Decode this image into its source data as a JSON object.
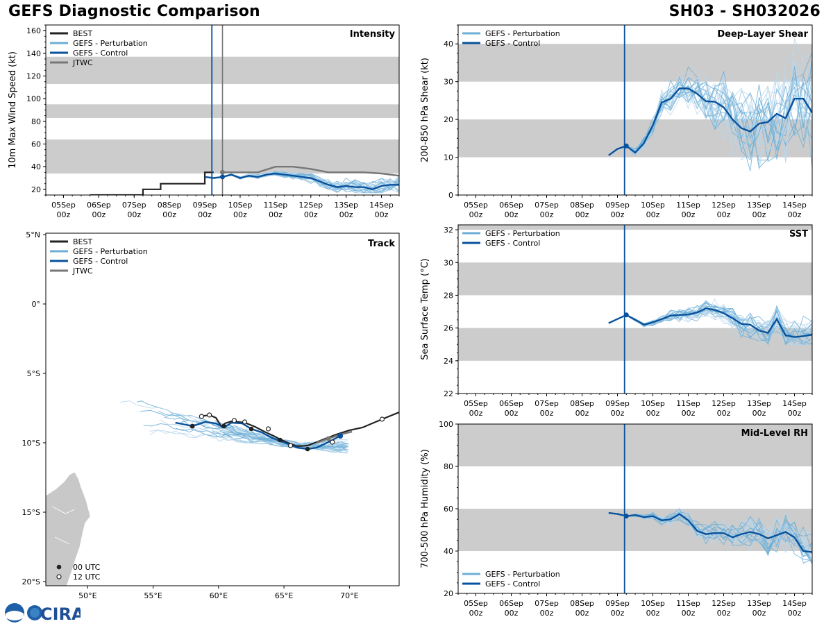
{
  "header": {
    "left_title": "GEFS Diagnostic Comparison",
    "right_title": "SH03 - SH032026"
  },
  "colors": {
    "best": "#222222",
    "perturbation": "#6baed6",
    "control": "#08519c",
    "jtwc": "#777777",
    "band": "#cccccc",
    "land": "#c8c8c8"
  },
  "logo": {
    "text": "CIRA"
  },
  "time_axis": {
    "day_labels": [
      "05Sep",
      "06Sep",
      "07Sep",
      "08Sep",
      "09Sep",
      "10Sep",
      "11Sep",
      "12Sep",
      "13Sep",
      "14Sep"
    ],
    "hour_label": "00z",
    "init_day": 9.2,
    "jtwc_day": 9.5
  },
  "chart_data": [
    {
      "id": "intensity",
      "type": "line",
      "title": "Intensity",
      "ylabel": "10m Max Wind Speed (kt)",
      "xlim": [
        4.5,
        14.5
      ],
      "ylim": [
        15,
        165
      ],
      "yticks": [
        20,
        40,
        60,
        80,
        100,
        120,
        140,
        160
      ],
      "bands": [
        [
          34,
          64
        ],
        [
          83,
          95
        ],
        [
          113,
          137
        ]
      ],
      "legend": [
        "BEST",
        "GEFS - Perturbation",
        "GEFS - Control",
        "JTWC"
      ],
      "best": {
        "x": [
          5.75,
          6,
          6.5,
          7,
          7.25,
          7.5,
          7.75,
          8,
          8.25,
          8.5,
          8.75,
          9,
          9.25
        ],
        "y": [
          15,
          15,
          15,
          15,
          20,
          20,
          25,
          25,
          25,
          25,
          25,
          35,
          35
        ]
      },
      "jtwc": {
        "x": [
          9.5,
          10,
          10.5,
          11,
          11.5,
          12,
          12.5,
          13,
          13.5,
          14,
          14.5
        ],
        "y": [
          35,
          35,
          35,
          40,
          40,
          38,
          35,
          35,
          35,
          34,
          32
        ]
      },
      "control": {
        "x": [
          9.0,
          9.25,
          9.5,
          9.75,
          10,
          10.25,
          10.5,
          10.75,
          11,
          11.25,
          11.5,
          11.75,
          12,
          12.25,
          12.5,
          12.75,
          13,
          13.25,
          13.5,
          13.75,
          14,
          14.25,
          14.5
        ],
        "y": [
          31,
          30,
          31,
          33,
          30,
          32,
          31,
          33,
          34,
          33,
          32,
          31,
          30,
          27,
          24,
          22,
          23,
          22,
          22,
          20,
          23,
          24,
          24
        ]
      },
      "perturbation_spread": {
        "min_y": 17,
        "max_y": 37
      }
    },
    {
      "id": "shear",
      "type": "line",
      "title": "Deep-Layer Shear",
      "ylabel": "200-850 hPa Shear (kt)",
      "xlim": [
        4.5,
        14.5
      ],
      "ylim": [
        0,
        45
      ],
      "yticks": [
        0,
        10,
        20,
        30,
        40
      ],
      "bands": [
        [
          10,
          20
        ],
        [
          30,
          40
        ]
      ],
      "legend": [
        "GEFS - Perturbation",
        "GEFS - Control"
      ],
      "control": {
        "x": [
          8.75,
          9,
          9.25,
          9.5,
          9.75,
          10,
          10.25,
          10.5,
          10.75,
          11,
          11.25,
          11.5,
          11.75,
          12,
          12.25,
          12.5,
          12.75,
          13,
          13.25,
          13.5,
          13.75,
          14,
          14.25,
          14.5
        ],
        "y": [
          10.5,
          12.2,
          13,
          11.2,
          13.8,
          18.5,
          24.5,
          25.5,
          28.2,
          28.2,
          26.8,
          24.8,
          24.7,
          23.2,
          20,
          17.7,
          16.8,
          18.9,
          19.3,
          21.5,
          20.3,
          25.5,
          25.5,
          21.8
        ]
      },
      "perturbation_spread": {
        "min_y": 5,
        "max_y": 44
      }
    },
    {
      "id": "track",
      "type": "scatter",
      "title": "Track",
      "xlim": [
        46.8,
        73.8
      ],
      "ylim": [
        -20.3,
        5.1
      ],
      "xticks": [
        50,
        55,
        60,
        65,
        70
      ],
      "xtick_labels": [
        "50°E",
        "55°E",
        "60°E",
        "65°E",
        "70°E"
      ],
      "yticks": [
        5,
        0,
        -5,
        -10,
        -15,
        -20
      ],
      "ytick_labels": [
        "5°N",
        "0°",
        "5°S",
        "10°S",
        "15°S",
        "20°S"
      ],
      "legend": [
        "BEST",
        "GEFS - Perturbation",
        "GEFS - Control",
        "JTWC"
      ],
      "marker_legend": [
        "00 UTC",
        "12 UTC"
      ],
      "best": {
        "lon": [
          73.8,
          72.5,
          71,
          70,
          69,
          68.3,
          67.5,
          66.8,
          66,
          65.3,
          64.7,
          64.2,
          63.5,
          62.8,
          62,
          61.5,
          61,
          60.5,
          60.2,
          59.8,
          59.3,
          58.6
        ],
        "lat": [
          -7.8,
          -8.3,
          -8.9,
          -9.1,
          -9.4,
          -9.65,
          -9.95,
          -10.2,
          -10.25,
          -10.0,
          -9.75,
          -9.5,
          -9.2,
          -8.85,
          -8.55,
          -8.5,
          -8.45,
          -8.6,
          -8.8,
          -8.2,
          -8.0,
          -8.1
        ]
      },
      "best_00utc": {
        "lon": [
          64.7,
          60.4,
          58
        ],
        "lat": [
          -9.8,
          -8.8,
          -8.8
        ]
      },
      "best_12utc": {
        "lon": [
          72.5,
          68.7,
          65.5,
          63.8,
          62.0,
          61.2,
          59.3,
          58.7
        ],
        "lat": [
          -8.3,
          -9.95,
          -10.2,
          -9.0,
          -8.5,
          -8.4,
          -8.0,
          -8.1
        ]
      },
      "control": {
        "lon": [
          69.3,
          68.5,
          67.5,
          66.8,
          66,
          65.2,
          64.6,
          64,
          63.3,
          62.5,
          61.8,
          61,
          60.4,
          59.8,
          59,
          58,
          57.5,
          56.7
        ],
        "lat": [
          -9.5,
          -9.9,
          -10.35,
          -10.45,
          -10.35,
          -10.05,
          -9.85,
          -9.6,
          -9.25,
          -9.0,
          -8.6,
          -8.55,
          -8.9,
          -8.6,
          -8.5,
          -8.8,
          -8.7,
          -8.55
        ]
      },
      "control_00utc": {
        "lon": [
          66.8,
          62.5,
          58
        ],
        "lat": [
          -10.45,
          -9.0,
          -8.8
        ]
      },
      "jtwc": {
        "lon": [
          70.2,
          69.3,
          68.4,
          67.5
        ],
        "lat": [
          -9.2,
          -9.4,
          -9.7,
          -10.0
        ]
      }
    },
    {
      "id": "sst",
      "type": "line",
      "title": "SST",
      "ylabel": "Sea Surface Temp (°C)",
      "xlim": [
        4.5,
        14.5
      ],
      "ylim": [
        22,
        32.3
      ],
      "yticks": [
        22,
        24,
        26,
        28,
        30,
        32
      ],
      "bands": [
        [
          24,
          26
        ],
        [
          28,
          30
        ],
        [
          32,
          32.3
        ]
      ],
      "legend": [
        "GEFS - Perturbation",
        "GEFS - Control"
      ],
      "control": {
        "x": [
          8.75,
          9,
          9.25,
          9.5,
          9.75,
          10,
          10.25,
          10.5,
          10.75,
          11,
          11.25,
          11.5,
          11.75,
          12,
          12.25,
          12.5,
          12.75,
          13,
          13.25,
          13.5,
          13.75,
          14,
          14.25,
          14.5
        ],
        "y": [
          26.3,
          26.55,
          26.8,
          26.5,
          26.2,
          26.35,
          26.55,
          26.75,
          26.8,
          26.82,
          26.95,
          27.2,
          27.1,
          26.9,
          26.6,
          26.25,
          26.2,
          25.85,
          25.7,
          26.55,
          25.55,
          25.45,
          25.5,
          25.6
        ]
      },
      "perturbation_spread": {
        "min_y": 25.0,
        "max_y": 28.0
      }
    },
    {
      "id": "rh",
      "type": "line",
      "title": "Mid-Level RH",
      "ylabel": "700-500 hPa Humidity (%)",
      "xlim": [
        4.5,
        14.5
      ],
      "ylim": [
        20,
        100
      ],
      "yticks": [
        20,
        40,
        60,
        80,
        100
      ],
      "bands": [
        [
          40,
          60
        ],
        [
          80,
          100
        ]
      ],
      "legend": [
        "GEFS - Perturbation",
        "GEFS - Control"
      ],
      "control": {
        "x": [
          8.75,
          9,
          9.25,
          9.5,
          9.75,
          10,
          10.25,
          10.5,
          10.75,
          11,
          11.25,
          11.5,
          11.75,
          12,
          12.25,
          12.5,
          12.75,
          13,
          13.25,
          13.5,
          13.75,
          14,
          14.25,
          14.5
        ],
        "y": [
          58,
          57.5,
          56.5,
          57,
          56,
          56.5,
          54.5,
          55,
          57.5,
          54.5,
          49.5,
          48,
          48.5,
          48.5,
          46.5,
          48,
          49,
          48,
          46,
          47.5,
          49,
          46.5,
          40,
          39.5
        ]
      },
      "perturbation_spread": {
        "min_y": 34,
        "max_y": 62
      }
    }
  ]
}
